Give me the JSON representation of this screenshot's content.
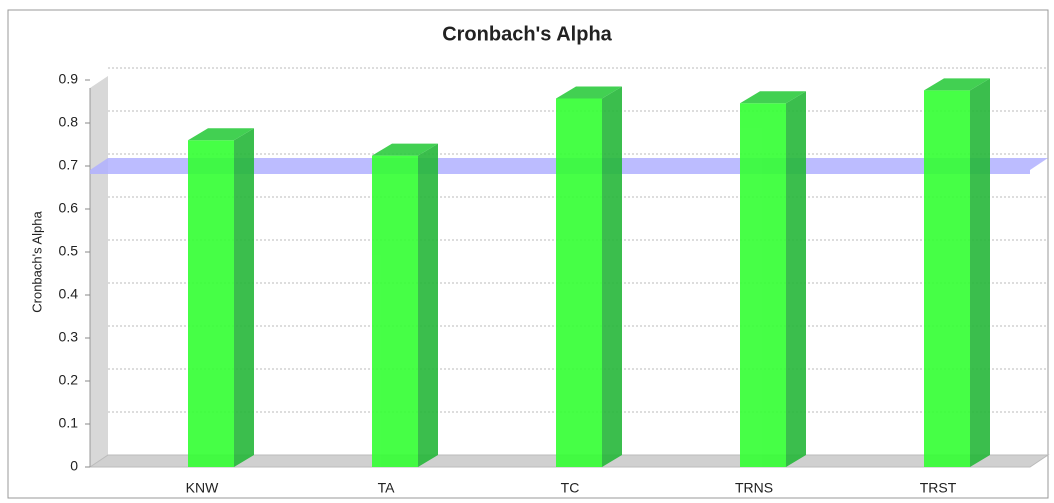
{
  "chart_data": {
    "type": "bar",
    "title": "Cronbach's Alpha",
    "y_label": "Cronbach's Alpha",
    "categories": [
      "KNW",
      "TA",
      "TC",
      "TRNS",
      "TRST"
    ],
    "values": [
      0.76,
      0.724,
      0.857,
      0.846,
      0.876
    ],
    "color": "#33ff33",
    "reference_line": 0.7,
    "reference_color": "#b0b0ff",
    "ylim": [
      0,
      0.9
    ],
    "yticks": [
      0,
      0.1,
      0.2,
      0.3,
      0.4,
      0.5,
      0.6,
      0.7,
      0.8,
      0.9
    ],
    "grid": true
  }
}
